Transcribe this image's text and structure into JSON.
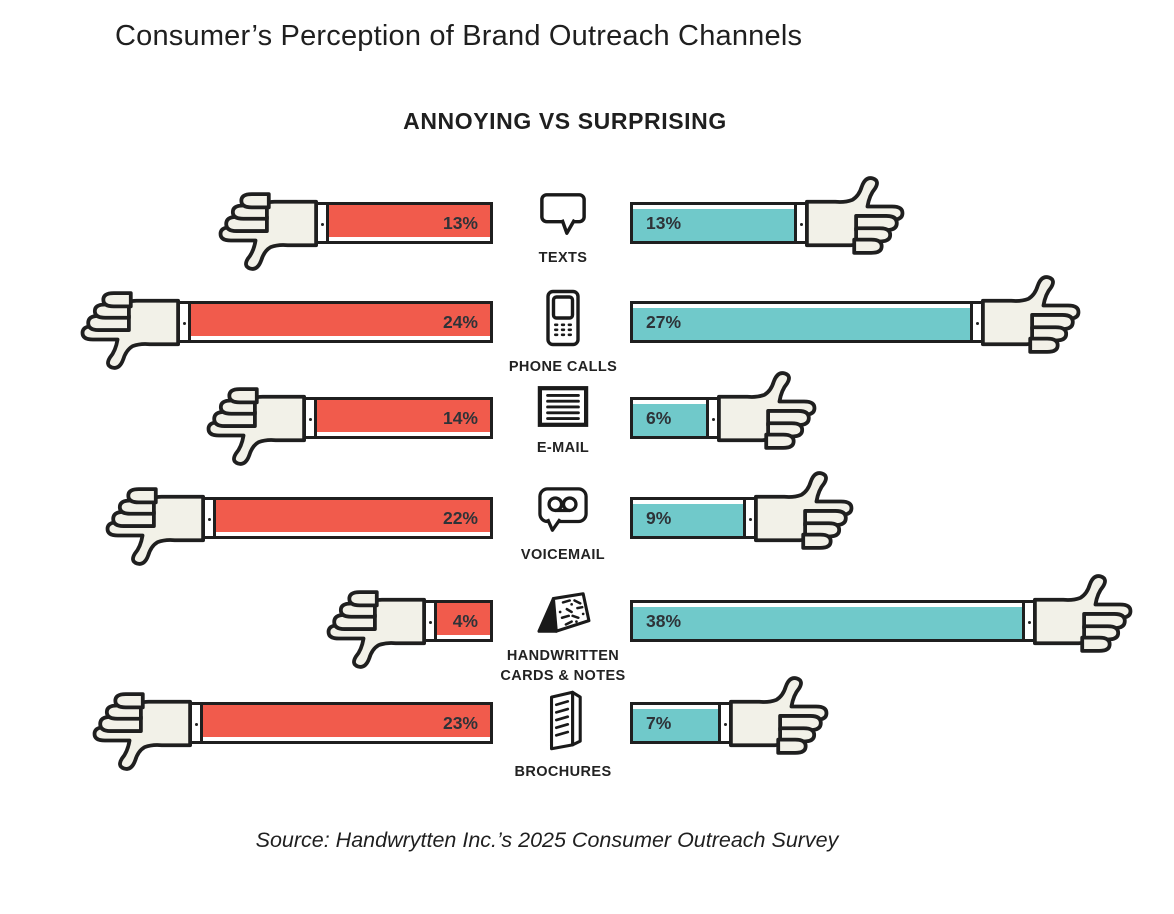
{
  "title": "Consumer’s Perception of Brand Outreach Channels",
  "source": "Source: Handwrytten Inc.’s 2025 Consumer Outreach Survey",
  "colors": {
    "annoying": "#F15B4C",
    "surprising": "#70C9CA",
    "outline": "#1F1F1F",
    "hand_fill": "#F2F1E8"
  },
  "chart_data": {
    "type": "bar",
    "orientation": "horizontal-diverging",
    "title": "ANNOYING VS SURPRISING",
    "categories": [
      "TEXTS",
      "PHONE CALLS",
      "E-MAIL",
      "VOICEMAIL",
      "HANDWRITTEN CARDS & NOTES",
      "BROCHURES"
    ],
    "series": [
      {
        "name": "Annoying",
        "side": "left",
        "color": "#F15B4C",
        "values": [
          13,
          24,
          14,
          22,
          4,
          23
        ]
      },
      {
        "name": "Surprising",
        "side": "right",
        "color": "#70C9CA",
        "values": [
          13,
          27,
          6,
          9,
          38,
          7
        ]
      }
    ],
    "value_suffix": "%",
    "value_labels": {
      "annoying": [
        "13%",
        "24%",
        "14%",
        "22%",
        "4%",
        "23%"
      ],
      "surprising": [
        "13%",
        "27%",
        "6%",
        "9%",
        "38%",
        "7%"
      ]
    },
    "icons": [
      "speech-bubble-icon",
      "mobile-phone-icon",
      "letter-icon",
      "voicemail-cassette-icon",
      "handwritten-card-icon",
      "brochure-icon"
    ],
    "legend_position": "none",
    "grid": false
  }
}
